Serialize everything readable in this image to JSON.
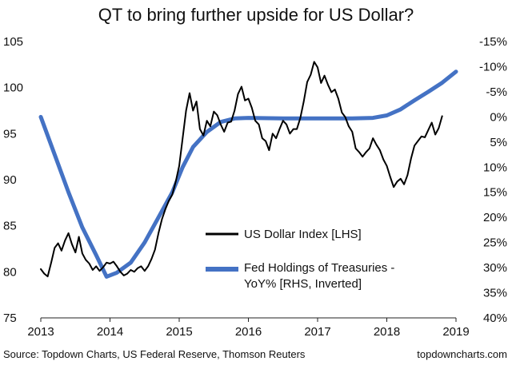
{
  "chart_data": {
    "type": "line",
    "title": "QT to bring further upside for US Dollar?",
    "x_ticks": [
      "2013",
      "2014",
      "2015",
      "2016",
      "2017",
      "2018",
      "2019"
    ],
    "xlim": [
      2013,
      2019
    ],
    "left_axis": {
      "ylim": [
        75,
        105
      ],
      "ticks": [
        105,
        100,
        95,
        90,
        85,
        80,
        75
      ],
      "tick_labels": [
        "105",
        "100",
        "95",
        "90",
        "85",
        "80",
        "75"
      ]
    },
    "right_axis": {
      "ylim": [
        -15,
        40
      ],
      "inverted": true,
      "ticks": [
        -15,
        -10,
        -5,
        0,
        5,
        10,
        15,
        20,
        25,
        30,
        35,
        40
      ],
      "tick_labels": [
        "-15%",
        "-10%",
        "-5%",
        "0%",
        "5%",
        "10%",
        "15%",
        "20%",
        "25%",
        "30%",
        "35%",
        "40%"
      ]
    },
    "series": [
      {
        "name": "US Dollar Index [LHS]",
        "axis": "left",
        "color": "#000000",
        "points": [
          [
            2013.0,
            80.3
          ],
          [
            2013.05,
            79.8
          ],
          [
            2013.1,
            79.5
          ],
          [
            2013.15,
            81.0
          ],
          [
            2013.2,
            82.6
          ],
          [
            2013.25,
            83.1
          ],
          [
            2013.3,
            82.3
          ],
          [
            2013.35,
            83.4
          ],
          [
            2013.4,
            84.2
          ],
          [
            2013.45,
            83.0
          ],
          [
            2013.5,
            82.1
          ],
          [
            2013.55,
            83.8
          ],
          [
            2013.6,
            82.0
          ],
          [
            2013.65,
            81.3
          ],
          [
            2013.7,
            80.9
          ],
          [
            2013.75,
            80.2
          ],
          [
            2013.8,
            80.6
          ],
          [
            2013.85,
            80.1
          ],
          [
            2013.9,
            80.5
          ],
          [
            2013.95,
            81.0
          ],
          [
            2014.0,
            80.9
          ],
          [
            2014.05,
            81.1
          ],
          [
            2014.1,
            80.6
          ],
          [
            2014.15,
            80.0
          ],
          [
            2014.2,
            79.6
          ],
          [
            2014.25,
            79.8
          ],
          [
            2014.3,
            80.2
          ],
          [
            2014.35,
            80.0
          ],
          [
            2014.4,
            80.4
          ],
          [
            2014.45,
            80.6
          ],
          [
            2014.5,
            80.1
          ],
          [
            2014.55,
            80.6
          ],
          [
            2014.6,
            81.4
          ],
          [
            2014.65,
            82.4
          ],
          [
            2014.7,
            84.2
          ],
          [
            2014.75,
            85.7
          ],
          [
            2014.8,
            86.8
          ],
          [
            2014.85,
            87.7
          ],
          [
            2014.9,
            88.4
          ],
          [
            2014.95,
            89.8
          ],
          [
            2015.0,
            91.5
          ],
          [
            2015.05,
            94.5
          ],
          [
            2015.1,
            97.5
          ],
          [
            2015.15,
            99.4
          ],
          [
            2015.2,
            97.5
          ],
          [
            2015.25,
            98.5
          ],
          [
            2015.3,
            95.5
          ],
          [
            2015.35,
            94.8
          ],
          [
            2015.4,
            96.4
          ],
          [
            2015.45,
            95.8
          ],
          [
            2015.5,
            97.4
          ],
          [
            2015.55,
            97.0
          ],
          [
            2015.6,
            96.0
          ],
          [
            2015.65,
            95.2
          ],
          [
            2015.7,
            96.2
          ],
          [
            2015.75,
            96.3
          ],
          [
            2015.8,
            97.5
          ],
          [
            2015.85,
            99.3
          ],
          [
            2015.9,
            100.1
          ],
          [
            2015.95,
            98.6
          ],
          [
            2016.0,
            98.8
          ],
          [
            2016.05,
            97.8
          ],
          [
            2016.1,
            96.4
          ],
          [
            2016.15,
            96.0
          ],
          [
            2016.2,
            94.5
          ],
          [
            2016.25,
            94.2
          ],
          [
            2016.3,
            93.2
          ],
          [
            2016.35,
            95.0
          ],
          [
            2016.4,
            94.5
          ],
          [
            2016.45,
            95.5
          ],
          [
            2016.5,
            96.4
          ],
          [
            2016.55,
            96.0
          ],
          [
            2016.6,
            95.0
          ],
          [
            2016.65,
            95.5
          ],
          [
            2016.7,
            95.5
          ],
          [
            2016.75,
            96.7
          ],
          [
            2016.8,
            98.5
          ],
          [
            2016.85,
            100.6
          ],
          [
            2016.9,
            101.4
          ],
          [
            2016.95,
            102.8
          ],
          [
            2017.0,
            102.2
          ],
          [
            2017.05,
            100.5
          ],
          [
            2017.1,
            101.3
          ],
          [
            2017.15,
            100.3
          ],
          [
            2017.2,
            99.5
          ],
          [
            2017.25,
            99.8
          ],
          [
            2017.3,
            98.8
          ],
          [
            2017.35,
            97.3
          ],
          [
            2017.4,
            96.8
          ],
          [
            2017.45,
            95.8
          ],
          [
            2017.5,
            95.2
          ],
          [
            2017.55,
            93.4
          ],
          [
            2017.6,
            93.0
          ],
          [
            2017.65,
            92.5
          ],
          [
            2017.7,
            93.0
          ],
          [
            2017.75,
            93.4
          ],
          [
            2017.8,
            94.5
          ],
          [
            2017.85,
            93.8
          ],
          [
            2017.9,
            93.2
          ],
          [
            2017.95,
            92.2
          ],
          [
            2018.0,
            91.5
          ],
          [
            2018.05,
            90.3
          ],
          [
            2018.1,
            89.2
          ],
          [
            2018.15,
            89.8
          ],
          [
            2018.2,
            90.1
          ],
          [
            2018.25,
            89.5
          ],
          [
            2018.3,
            90.5
          ],
          [
            2018.35,
            92.3
          ],
          [
            2018.4,
            93.7
          ],
          [
            2018.45,
            94.2
          ],
          [
            2018.5,
            94.7
          ],
          [
            2018.55,
            94.6
          ],
          [
            2018.6,
            95.4
          ],
          [
            2018.65,
            96.2
          ],
          [
            2018.7,
            94.9
          ],
          [
            2018.75,
            95.6
          ],
          [
            2018.8,
            96.9
          ]
        ]
      },
      {
        "name": "Fed Holdings of Treasuries - YoY% [RHS, Inverted]",
        "axis": "right",
        "color": "#4472c4",
        "points": [
          [
            2013.0,
            0.0
          ],
          [
            2013.2,
            7.5
          ],
          [
            2013.4,
            15.0
          ],
          [
            2013.6,
            22.0
          ],
          [
            2013.8,
            27.5
          ],
          [
            2013.95,
            31.8
          ],
          [
            2014.1,
            31.0
          ],
          [
            2014.3,
            29.0
          ],
          [
            2014.5,
            25.0
          ],
          [
            2014.7,
            20.0
          ],
          [
            2014.9,
            15.0
          ],
          [
            2015.05,
            10.0
          ],
          [
            2015.2,
            6.0
          ],
          [
            2015.4,
            3.0
          ],
          [
            2015.6,
            1.0
          ],
          [
            2015.8,
            0.3
          ],
          [
            2016.0,
            0.2
          ],
          [
            2016.5,
            0.3
          ],
          [
            2017.0,
            0.3
          ],
          [
            2017.5,
            0.3
          ],
          [
            2017.8,
            0.2
          ],
          [
            2018.0,
            -0.3
          ],
          [
            2018.2,
            -1.5
          ],
          [
            2018.4,
            -3.3
          ],
          [
            2018.6,
            -5.0
          ],
          [
            2018.8,
            -6.8
          ],
          [
            2019.0,
            -9.0
          ]
        ]
      }
    ],
    "legend": {
      "placement": "lower-right",
      "entries": [
        "US Dollar Index [LHS]",
        "Fed Holdings of Treasuries -",
        "YoY% [RHS, Inverted]"
      ]
    }
  },
  "footer": {
    "source": "Source: Topdown Charts, US Federal Reserve, Thomson Reuters",
    "site": "topdowncharts.com"
  }
}
